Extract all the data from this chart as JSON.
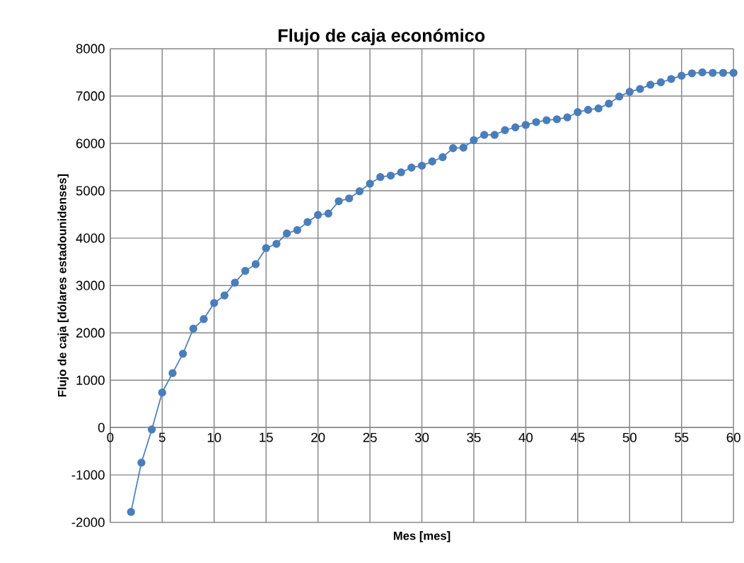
{
  "chart_data": {
    "type": "line",
    "title": "Flujo de caja económico",
    "xlabel": "Mes [mes]",
    "ylabel": "Flujo de caja [dólares estadounidenses]",
    "x": [
      2,
      3,
      4,
      5,
      6,
      7,
      8,
      9,
      10,
      11,
      12,
      13,
      14,
      15,
      16,
      17,
      18,
      19,
      20,
      21,
      22,
      23,
      24,
      25,
      26,
      27,
      28,
      29,
      30,
      31,
      32,
      33,
      34,
      35,
      36,
      37,
      38,
      39,
      40,
      41,
      42,
      43,
      44,
      45,
      46,
      47,
      48,
      49,
      50,
      51,
      52,
      53,
      54,
      55,
      56,
      57,
      58,
      59,
      60
    ],
    "series": [
      {
        "color": "#4a7ebb",
        "values": [
          -1780,
          -740,
          -40,
          740,
          1150,
          1560,
          2090,
          2290,
          2630,
          2790,
          3060,
          3310,
          3450,
          3790,
          3880,
          4100,
          4170,
          4340,
          4490,
          4520,
          4780,
          4840,
          4990,
          5150,
          5290,
          5320,
          5390,
          5490,
          5530,
          5620,
          5710,
          5900,
          5910,
          6070,
          6180,
          6180,
          6280,
          6340,
          6390,
          6450,
          6490,
          6510,
          6550,
          6660,
          6710,
          6740,
          6840,
          6990,
          7090,
          7150,
          7240,
          7290,
          7360,
          7430,
          7480,
          7500,
          7490,
          7490,
          7490
        ]
      }
    ],
    "xlim": [
      0,
      60
    ],
    "ylim": [
      -2000,
      8000
    ],
    "xticks": [
      0,
      5,
      10,
      15,
      20,
      25,
      30,
      35,
      40,
      45,
      50,
      55,
      60
    ],
    "yticks": [
      -2000,
      -1000,
      0,
      1000,
      2000,
      3000,
      4000,
      5000,
      6000,
      7000,
      8000
    ],
    "grid": true,
    "marker": "circle",
    "line_style": "solid"
  }
}
